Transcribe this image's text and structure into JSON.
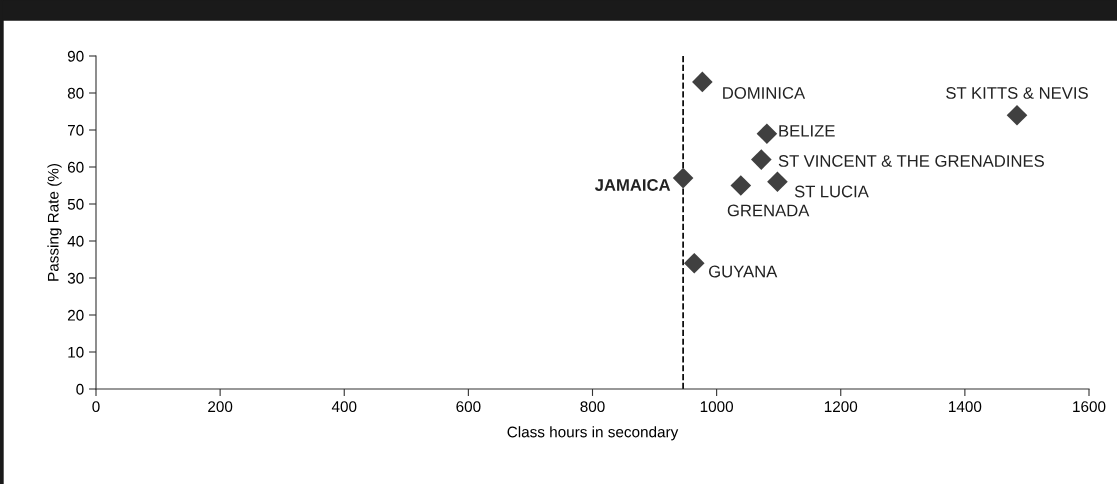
{
  "chart_data": {
    "type": "scatter",
    "xlabel": "Class hours in secondary",
    "ylabel": "Passing Rate (%)",
    "x": [
      946,
      977,
      1484,
      1081,
      1072,
      1098,
      1039,
      964
    ],
    "values": [
      57,
      83,
      74,
      69,
      62,
      56,
      55,
      34
    ],
    "color": "#404040",
    "marker": "diamond",
    "xlim": [
      0,
      1600
    ],
    "xticks": [
      0,
      200,
      400,
      600,
      800,
      1000,
      1200,
      1400,
      1600
    ],
    "ylim": [
      0,
      90
    ],
    "yticks": [
      0,
      10,
      20,
      30,
      40,
      50,
      60,
      70,
      80,
      90
    ],
    "grid": false,
    "legend": false,
    "ref_lines": [
      {
        "axis": "x",
        "value": 946,
        "line_style": "dashed",
        "color": "#000000"
      }
    ],
    "annotations": [
      {
        "text": "JAMAICA",
        "x": 946,
        "y": 57
      },
      {
        "text": "DOMINICA",
        "x": 977,
        "y": 83
      },
      {
        "text": "ST KITTS & NEVIS",
        "x": 1484,
        "y": 74
      },
      {
        "text": "BELIZE",
        "x": 1081,
        "y": 69
      },
      {
        "text": "ST VINCENT & THE GRENADINES",
        "x": 1072,
        "y": 62
      },
      {
        "text": "ST LUCIA",
        "x": 1098,
        "y": 56
      },
      {
        "text": "GRENADA",
        "x": 1039,
        "y": 55
      },
      {
        "text": "GUYANA",
        "x": 964,
        "y": 34
      }
    ]
  }
}
